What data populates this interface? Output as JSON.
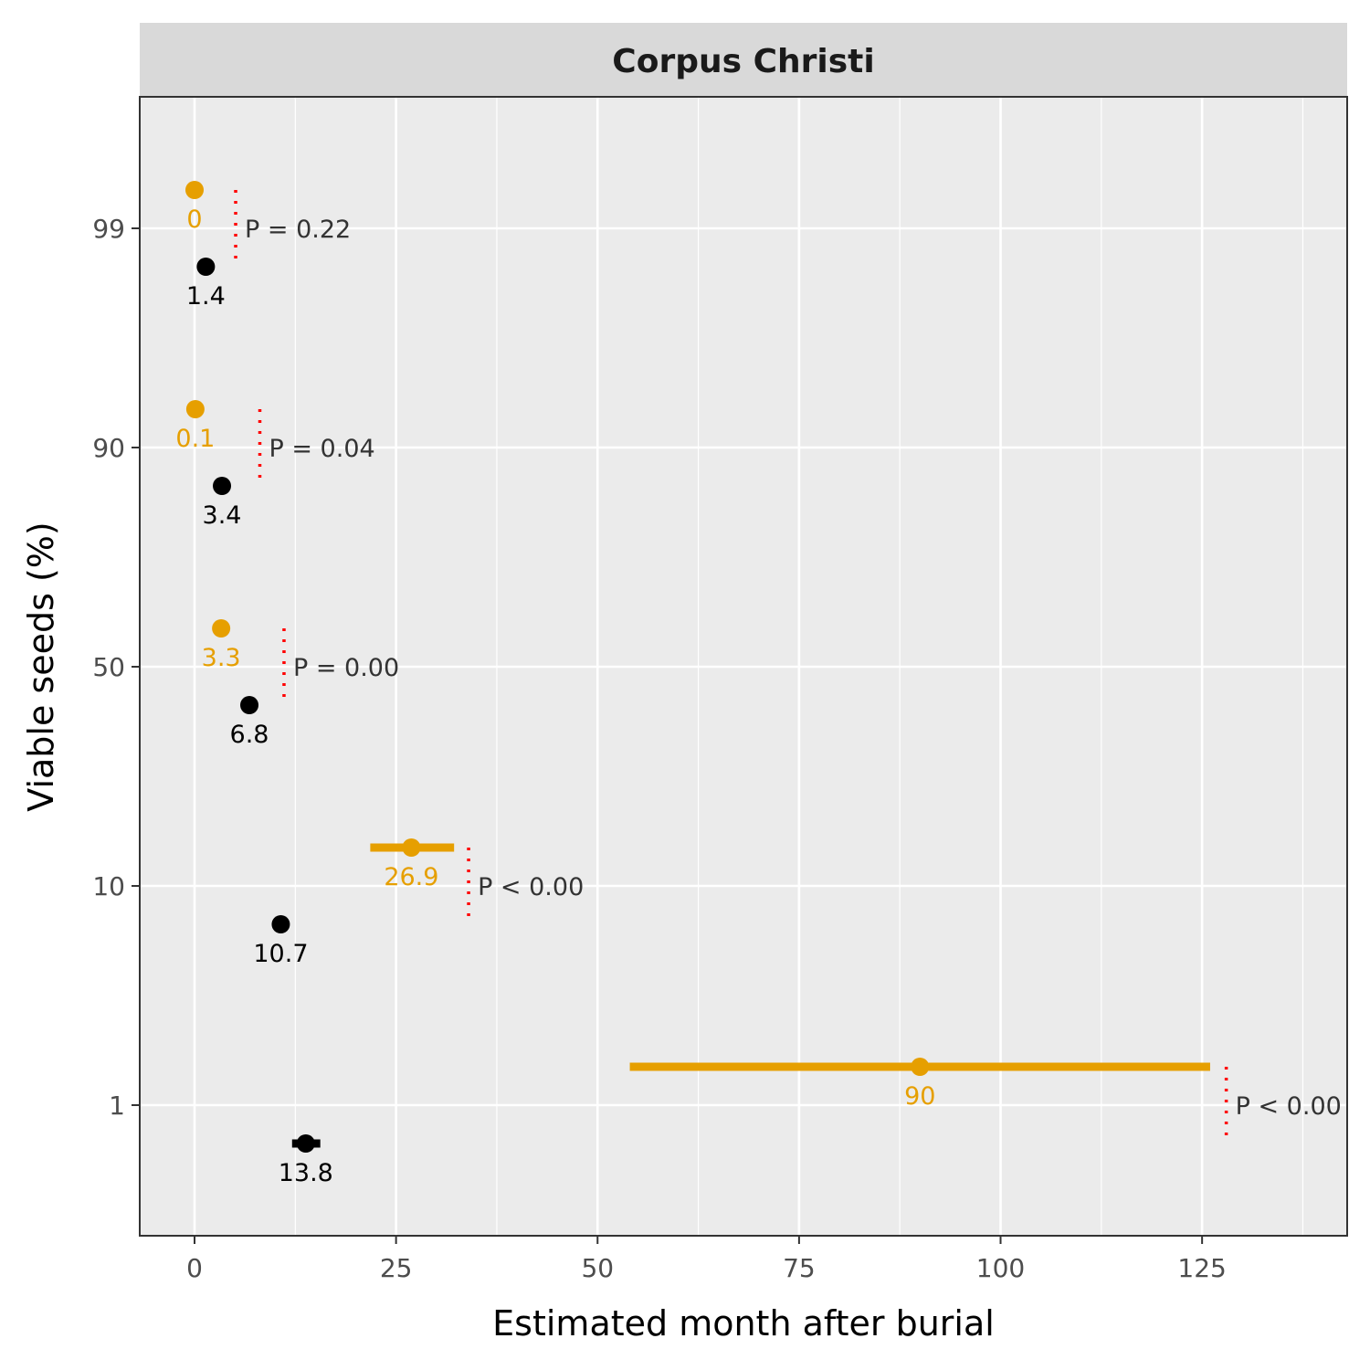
{
  "chart_data": {
    "type": "scatter",
    "facet_title": "Corpus Christi",
    "xlabel": "Estimated month after burial",
    "ylabel": "Viable seeds (%)",
    "xlim": [
      -6.8,
      143
    ],
    "x_ticks": [
      0,
      25,
      50,
      75,
      100,
      125
    ],
    "x_tick_labels": [
      "0",
      "25",
      "50",
      "75",
      "100",
      "125"
    ],
    "y_categories": [
      "1",
      "10",
      "50",
      "90",
      "99"
    ],
    "grid": true,
    "legend": "none",
    "colors": {
      "orange": "#E69F00",
      "black": "#000000",
      "p_line": "#FF0000",
      "panel_bg": "#EBEBEB",
      "strip_bg": "#D9D9D9"
    },
    "series": [
      {
        "color": "#E69F00",
        "points": [
          {
            "y": "99",
            "x": 0,
            "label": "0"
          },
          {
            "y": "90",
            "x": 0.1,
            "label": "0.1"
          },
          {
            "y": "50",
            "x": 3.3,
            "label": "3.3"
          },
          {
            "y": "10",
            "x": 26.9,
            "label": "26.9",
            "xmin": 21.8,
            "xmax": 32.2
          },
          {
            "y": "1",
            "x": 90,
            "label": "90",
            "xmin": 54,
            "xmax": 126
          }
        ]
      },
      {
        "color": "#000000",
        "points": [
          {
            "y": "99",
            "x": 1.4,
            "label": "1.4"
          },
          {
            "y": "90",
            "x": 3.4,
            "label": "3.4"
          },
          {
            "y": "50",
            "x": 6.8,
            "label": "6.8"
          },
          {
            "y": "10",
            "x": 10.7,
            "label": "10.7"
          },
          {
            "y": "1",
            "x": 13.8,
            "label": "13.8",
            "xmin": 12.1,
            "xmax": 15.6
          }
        ]
      }
    ],
    "p_values": [
      {
        "y": "99",
        "x": 5.1,
        "label": "P = 0.22"
      },
      {
        "y": "90",
        "x": 8.1,
        "label": "P = 0.04"
      },
      {
        "y": "50",
        "x": 11.1,
        "label": "P = 0.00"
      },
      {
        "y": "10",
        "x": 34.0,
        "label": "P < 0.00"
      },
      {
        "y": "1",
        "x": 128.0,
        "label": "P < 0.00"
      }
    ]
  }
}
